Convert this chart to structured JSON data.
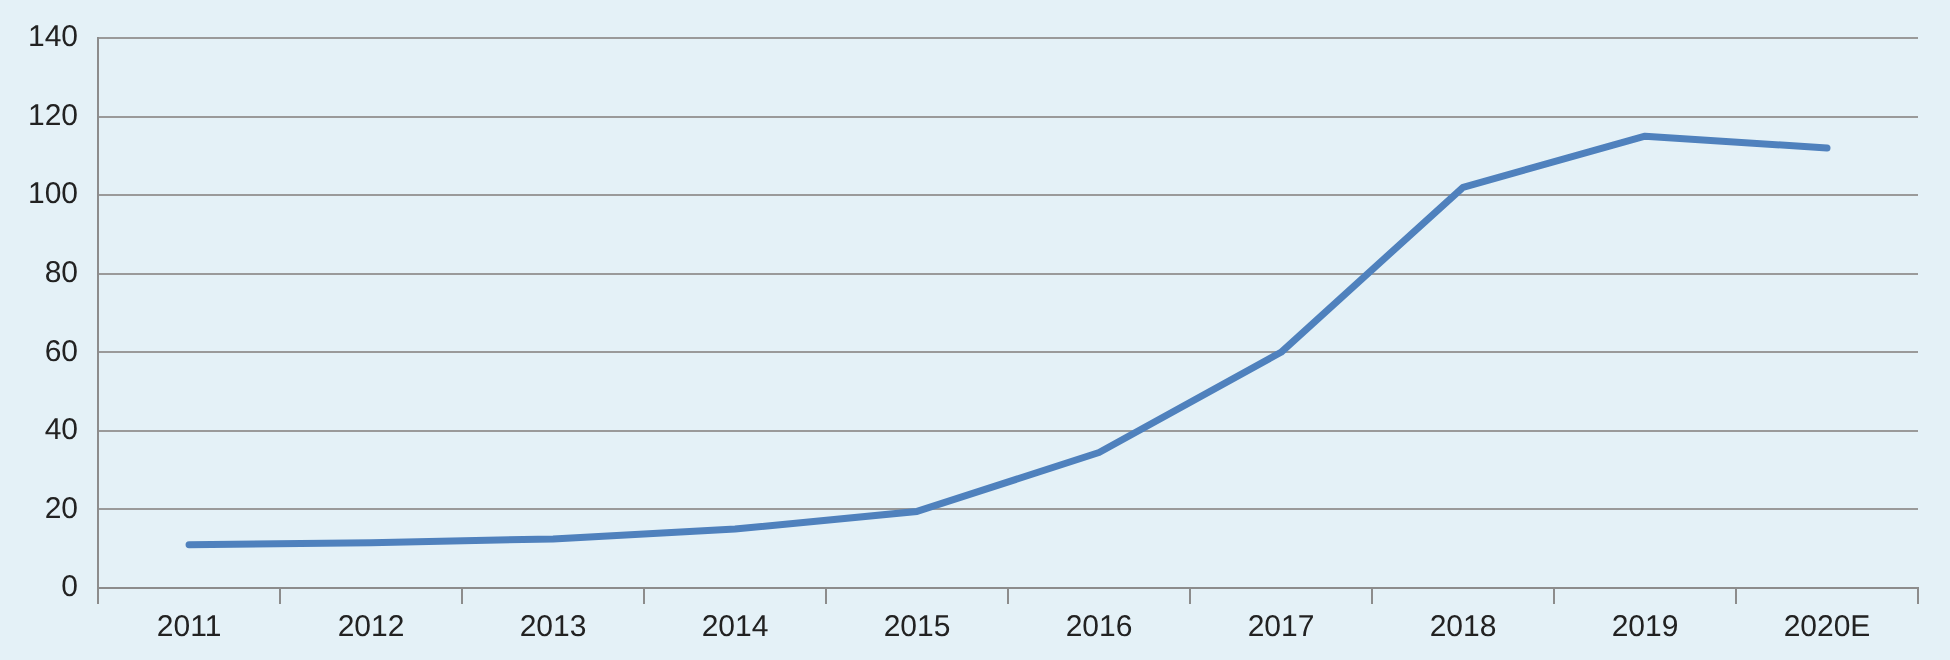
{
  "chart_data": {
    "type": "line",
    "categories": [
      "2011",
      "2012",
      "2013",
      "2014",
      "2015",
      "2016",
      "2017",
      "2018",
      "2019",
      "2020E"
    ],
    "series": [
      {
        "color": "#4f81bd",
        "values": [
          11,
          11.5,
          12.5,
          15,
          19.5,
          34.5,
          60,
          102,
          115,
          112
        ]
      }
    ],
    "ylim": [
      0,
      140
    ],
    "yticks": [
      0,
      20,
      40,
      60,
      80,
      100,
      120,
      140
    ],
    "grid": "y",
    "legend": false,
    "marker": "none"
  }
}
